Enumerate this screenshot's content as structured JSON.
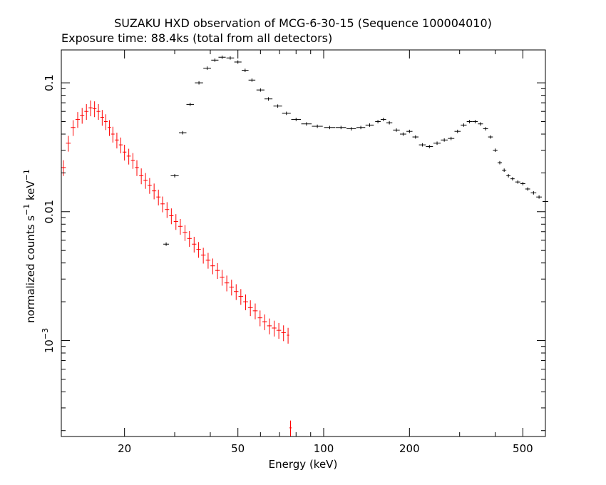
{
  "chart_data": {
    "type": "scatter",
    "title": "SUZAKU HXD observation of MCG-6-30-15 (Sequence 100004010)",
    "subtitle": "Exposure time: 88.4ks (total from all detectors)",
    "xlabel": "Energy (keV)",
    "ylabel": {
      "prefix": "normalized counts s",
      "exp1": "−1",
      "mid": " keV",
      "exp2": "−1"
    },
    "x_scale": "log",
    "y_scale": "log",
    "xlim": [
      12,
      600
    ],
    "ylim": [
      0.00018,
      0.18
    ],
    "x_ticks": [
      {
        "value": 20,
        "label": "20"
      },
      {
        "value": 50,
        "label": "50"
      },
      {
        "value": 100,
        "label": "100"
      },
      {
        "value": 200,
        "label": "200"
      },
      {
        "value": 500,
        "label": "500"
      }
    ],
    "y_ticks": [
      {
        "value": 0.1,
        "label": "0.1"
      },
      {
        "value": 0.01,
        "label": "0.01"
      },
      {
        "value": 0.001,
        "label": "10",
        "exp": "−3"
      }
    ],
    "grid": false,
    "legend": "none",
    "series": [
      {
        "color": "#ff0000",
        "x": [
          12.2,
          12.7,
          13.2,
          13.7,
          14.2,
          14.7,
          15.2,
          15.7,
          16.2,
          16.7,
          17.2,
          17.7,
          18.2,
          18.8,
          19.4,
          20.0,
          20.7,
          21.4,
          22.1,
          22.9,
          23.7,
          24.5,
          25.4,
          26.3,
          27.2,
          28.2,
          29.2,
          30.3,
          31.4,
          32.6,
          33.8,
          35.1,
          36.4,
          37.8,
          39.3,
          40.8,
          42.4,
          44.0,
          45.7,
          47.5,
          49.3,
          51.2,
          53.2,
          55.3,
          57.5,
          59.8,
          62.1,
          64.5,
          67.0,
          69.6,
          72.3,
          75.0,
          76.5
        ],
        "y": [
          0.022,
          0.034,
          0.045,
          0.052,
          0.056,
          0.06,
          0.064,
          0.063,
          0.06,
          0.054,
          0.05,
          0.045,
          0.04,
          0.036,
          0.033,
          0.029,
          0.027,
          0.025,
          0.022,
          0.019,
          0.0175,
          0.016,
          0.0145,
          0.013,
          0.0115,
          0.0104,
          0.0093,
          0.0084,
          0.0077,
          0.0069,
          0.0062,
          0.0056,
          0.0051,
          0.0046,
          0.0042,
          0.0038,
          0.0035,
          0.0031,
          0.0028,
          0.0026,
          0.0024,
          0.0022,
          0.002,
          0.0018,
          0.0017,
          0.0015,
          0.0014,
          0.0013,
          0.00125,
          0.0012,
          0.00115,
          0.0011,
          0.00021
        ],
        "yerr_frac": 0.14
      },
      {
        "color": "#000000",
        "x": [
          28.0,
          30.0,
          32.0,
          34.0,
          36.5,
          39.0,
          41.5,
          44.0,
          47.0,
          50.0,
          53.0,
          56.0,
          60.0,
          64.0,
          69.0,
          74.0,
          80.0,
          87.0,
          95.0,
          105.0,
          115.0,
          125.0,
          135.0,
          145.0,
          155.0,
          162.0,
          170.0,
          180.0,
          190.0,
          200.0,
          210.0,
          222.0,
          235.0,
          250.0,
          265.0,
          280.0,
          295.0,
          310.0,
          325.0,
          340.0,
          355.0,
          370.0,
          385.0,
          400.0,
          415.0,
          430.0,
          445.0,
          460.0,
          480.0,
          500.0,
          520.0,
          545.0,
          570.0,
          600.0
        ],
        "y": [
          0.0056,
          0.019,
          0.041,
          0.068,
          0.1,
          0.13,
          0.15,
          0.158,
          0.156,
          0.145,
          0.125,
          0.105,
          0.088,
          0.075,
          0.066,
          0.058,
          0.052,
          0.048,
          0.046,
          0.045,
          0.045,
          0.044,
          0.045,
          0.047,
          0.05,
          0.052,
          0.049,
          0.043,
          0.04,
          0.042,
          0.038,
          0.033,
          0.032,
          0.034,
          0.036,
          0.037,
          0.042,
          0.047,
          0.05,
          0.05,
          0.048,
          0.044,
          0.038,
          0.03,
          0.024,
          0.021,
          0.019,
          0.018,
          0.017,
          0.0165,
          0.015,
          0.014,
          0.013,
          0.012
        ],
        "yerr_frac": 0.03
      }
    ]
  }
}
